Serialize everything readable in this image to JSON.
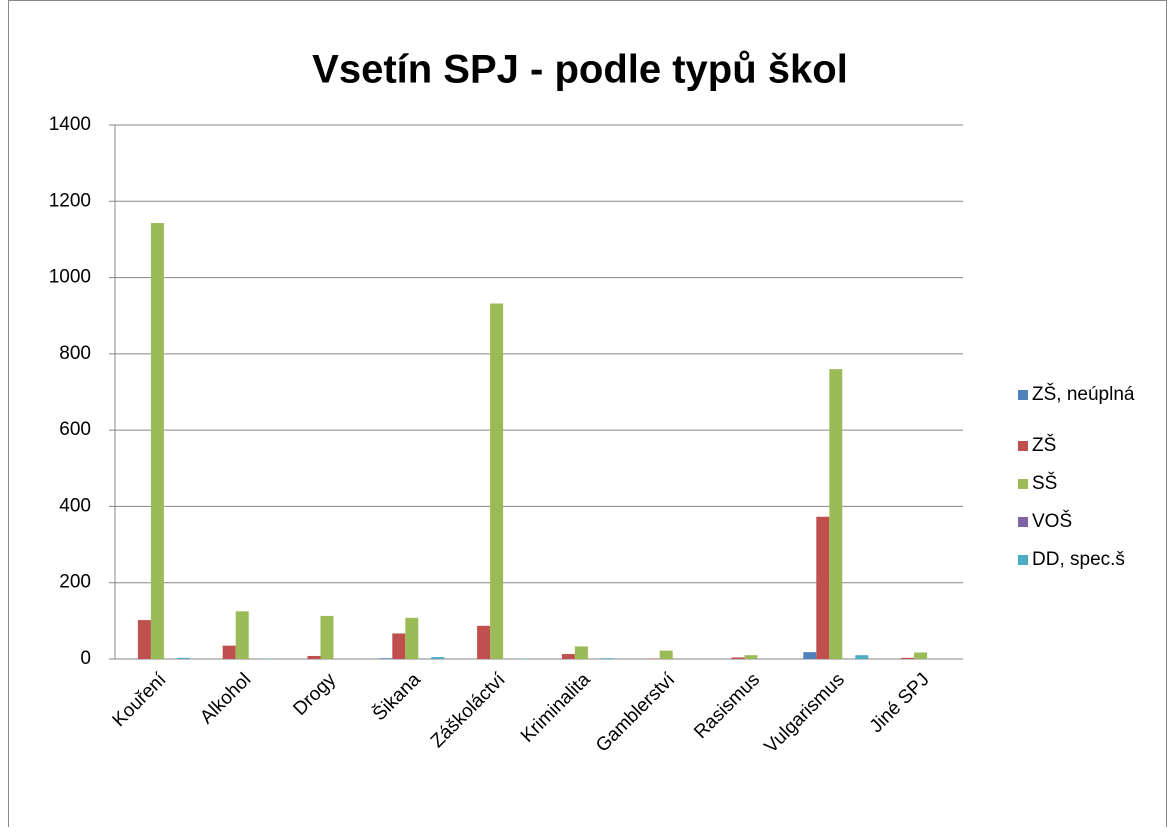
{
  "chart_data": {
    "type": "bar",
    "title": "Vsetín SPJ - podle typů škol",
    "categories": [
      "Kouření",
      "Alkohol",
      "Drogy",
      "Šikana",
      "Záškoláctví",
      "Kriminalita",
      "Gamblerství",
      "Rasismus",
      "Vulgarismus",
      "Jiné SPJ"
    ],
    "series": [
      {
        "name": "ZŠ, neúplná",
        "color": "#4f81bd",
        "values": [
          0,
          0,
          0,
          2,
          0,
          0,
          0,
          0,
          18,
          0
        ]
      },
      {
        "name": "ZŠ",
        "color": "#c0504d",
        "values": [
          102,
          35,
          8,
          67,
          87,
          13,
          1,
          4,
          373,
          3
        ]
      },
      {
        "name": "SŠ",
        "color": "#9bbb59",
        "values": [
          1143,
          125,
          113,
          108,
          932,
          33,
          22,
          10,
          760,
          17
        ]
      },
      {
        "name": "VOŠ",
        "color": "#8064a2",
        "values": [
          0,
          0,
          0,
          0,
          0,
          0,
          0,
          0,
          0,
          0
        ]
      },
      {
        "name": "DD, spec.š",
        "color": "#4bacc6",
        "values": [
          3,
          1,
          0,
          5,
          1,
          2,
          0,
          0,
          10,
          0
        ]
      }
    ],
    "ylim": [
      0,
      1400
    ],
    "yticks": [
      0,
      200,
      400,
      600,
      800,
      1000,
      1200,
      1400
    ],
    "grid": true,
    "legend": "right"
  }
}
